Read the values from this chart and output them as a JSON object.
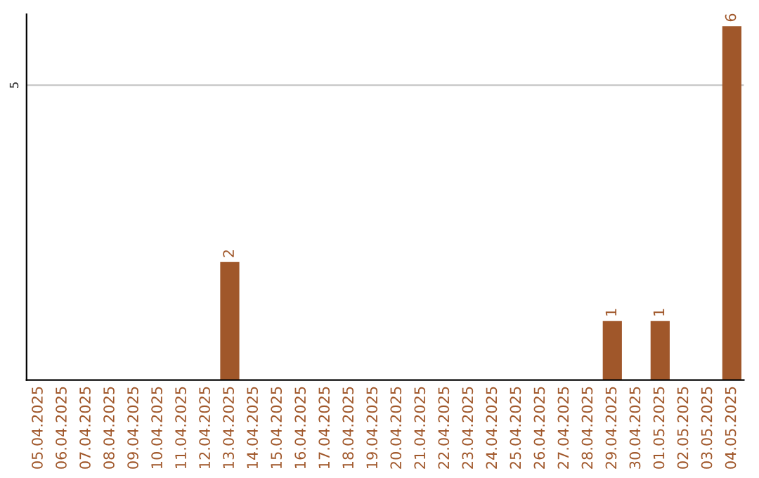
{
  "chart_data": {
    "type": "bar",
    "categories": [
      "05.04.2025",
      "06.04.2025",
      "07.04.2025",
      "08.04.2025",
      "09.04.2025",
      "10.04.2025",
      "11.04.2025",
      "12.04.2025",
      "13.04.2025",
      "14.04.2025",
      "15.04.2025",
      "16.04.2025",
      "17.04.2025",
      "18.04.2025",
      "19.04.2025",
      "20.04.2025",
      "21.04.2025",
      "22.04.2025",
      "23.04.2025",
      "24.04.2025",
      "25.04.2025",
      "26.04.2025",
      "27.04.2025",
      "28.04.2025",
      "29.04.2025",
      "30.04.2025",
      "01.05.2025",
      "02.05.2025",
      "03.05.2025",
      "04.05.2025"
    ],
    "values": [
      0,
      0,
      0,
      0,
      0,
      0,
      0,
      0,
      2,
      0,
      0,
      0,
      0,
      0,
      0,
      0,
      0,
      0,
      0,
      0,
      0,
      0,
      0,
      0,
      1,
      0,
      1,
      0,
      0,
      6
    ],
    "value_labels": [
      null,
      null,
      null,
      null,
      null,
      null,
      null,
      null,
      "2",
      null,
      null,
      null,
      null,
      null,
      null,
      null,
      null,
      null,
      null,
      null,
      null,
      null,
      null,
      null,
      "1",
      null,
      "1",
      null,
      null,
      "6"
    ],
    "color": "#a0572a",
    "ylim": [
      0,
      6.2
    ],
    "yticks": [
      5
    ],
    "grid": "y",
    "legend": false
  }
}
